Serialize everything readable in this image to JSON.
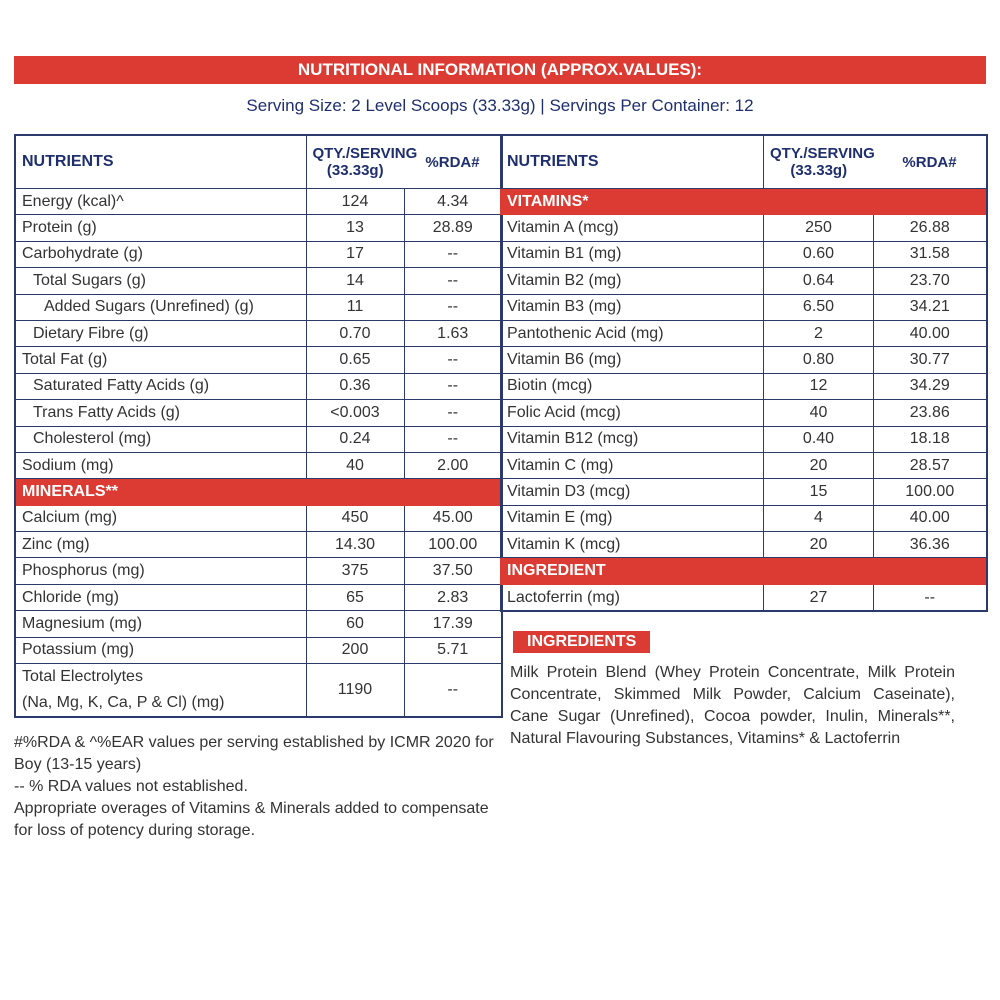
{
  "banner": "NUTRITIONAL INFORMATION (APPROX.VALUES):",
  "serving": "Serving Size: 2 Level Scoops (33.33g) | Servings Per Container: 12",
  "headers": {
    "nutrients": "NUTRIENTS",
    "qty": "QTY./SERVING (33.33g)",
    "rda": "%RDA#"
  },
  "left_rows": [
    {
      "name": "Energy (kcal)^",
      "qty": "124",
      "rda": "4.34",
      "indent": 0
    },
    {
      "name": "Protein (g)",
      "qty": "13",
      "rda": "28.89",
      "indent": 0
    },
    {
      "name": "Carbohydrate (g)",
      "qty": "17",
      "rda": "--",
      "indent": 0
    },
    {
      "name": "Total Sugars (g)",
      "qty": "14",
      "rda": "--",
      "indent": 1
    },
    {
      "name": "Added Sugars (Unrefined) (g)",
      "qty": "11",
      "rda": "--",
      "indent": 2
    },
    {
      "name": "Dietary Fibre (g)",
      "qty": "0.70",
      "rda": "1.63",
      "indent": 1
    },
    {
      "name": "Total Fat (g)",
      "qty": "0.65",
      "rda": "--",
      "indent": 0
    },
    {
      "name": "Saturated Fatty Acids (g)",
      "qty": "0.36",
      "rda": "--",
      "indent": 1
    },
    {
      "name": "Trans Fatty Acids (g)",
      "qty": "<0.003",
      "rda": "--",
      "indent": 1
    },
    {
      "name": "Cholesterol (mg)",
      "qty": "0.24",
      "rda": "--",
      "indent": 1
    },
    {
      "name": "Sodium (mg)",
      "qty": "40",
      "rda": "2.00",
      "indent": 0
    },
    {
      "section": "MINERALS**"
    },
    {
      "name": "Calcium (mg)",
      "qty": "450",
      "rda": "45.00",
      "indent": 0
    },
    {
      "name": "Zinc (mg)",
      "qty": "14.30",
      "rda": "100.00",
      "indent": 0
    },
    {
      "name": "Phosphorus (mg)",
      "qty": "375",
      "rda": "37.50",
      "indent": 0
    },
    {
      "name": "Chloride (mg)",
      "qty": "65",
      "rda": "2.83",
      "indent": 0
    },
    {
      "name": "Magnesium (mg)",
      "qty": "60",
      "rda": "17.39",
      "indent": 0
    },
    {
      "name": "Potassium (mg)",
      "qty": "200",
      "rda": "5.71",
      "indent": 0
    },
    {
      "name": "Total Electrolytes",
      "name2": "(Na, Mg, K, Ca, P & Cl) (mg)",
      "qty": "1190",
      "rda": "--",
      "indent": 0
    }
  ],
  "right_rows": [
    {
      "section": "VITAMINS*"
    },
    {
      "name": "Vitamin A (mcg)",
      "qty": "250",
      "rda": "26.88"
    },
    {
      "name": "Vitamin B1 (mg)",
      "qty": "0.60",
      "rda": "31.58"
    },
    {
      "name": "Vitamin B2 (mg)",
      "qty": "0.64",
      "rda": "23.70"
    },
    {
      "name": "Vitamin B3 (mg)",
      "qty": "6.50",
      "rda": "34.21"
    },
    {
      "name": "Pantothenic Acid (mg)",
      "qty": "2",
      "rda": "40.00"
    },
    {
      "name": "Vitamin B6 (mg)",
      "qty": "0.80",
      "rda": "30.77"
    },
    {
      "name": "Biotin (mcg)",
      "qty": "12",
      "rda": "34.29"
    },
    {
      "name": "Folic Acid (mcg)",
      "qty": "40",
      "rda": "23.86"
    },
    {
      "name": "Vitamin B12 (mcg)",
      "qty": "0.40",
      "rda": "18.18"
    },
    {
      "name": "Vitamin C (mg)",
      "qty": "20",
      "rda": "28.57"
    },
    {
      "name": "Vitamin D3 (mcg)",
      "qty": "15",
      "rda": "100.00"
    },
    {
      "name": "Vitamin E (mg)",
      "qty": "4",
      "rda": "40.00"
    },
    {
      "name": "Vitamin K (mcg)",
      "qty": "20",
      "rda": "36.36"
    },
    {
      "section": "INGREDIENT"
    },
    {
      "name": "Lactoferrin (mg)",
      "qty": "27",
      "rda": "--"
    }
  ],
  "ingredients": {
    "title": "INGREDIENTS",
    "text": "Milk Protein Blend (Whey Protein Concentrate, Milk Protein Concentrate, Skimmed Milk Powder, Calcium Caseinate), Cane Sugar (Unrefined), Cocoa powder, Inulin, Minerals**, Natural Flavouring Substances, Vitamins* & Lactoferrin"
  },
  "notes": [
    "#%RDA & ^%EAR values per serving established by ICMR 2020 for Boy (13-15 years)",
    "-- % RDA values not established.",
    "Appropriate overages of Vitamins & Minerals added to compensate for loss of potency during storage."
  ],
  "colors": {
    "accent_red": "#dc3b33",
    "navy": "#1f2f6e"
  }
}
